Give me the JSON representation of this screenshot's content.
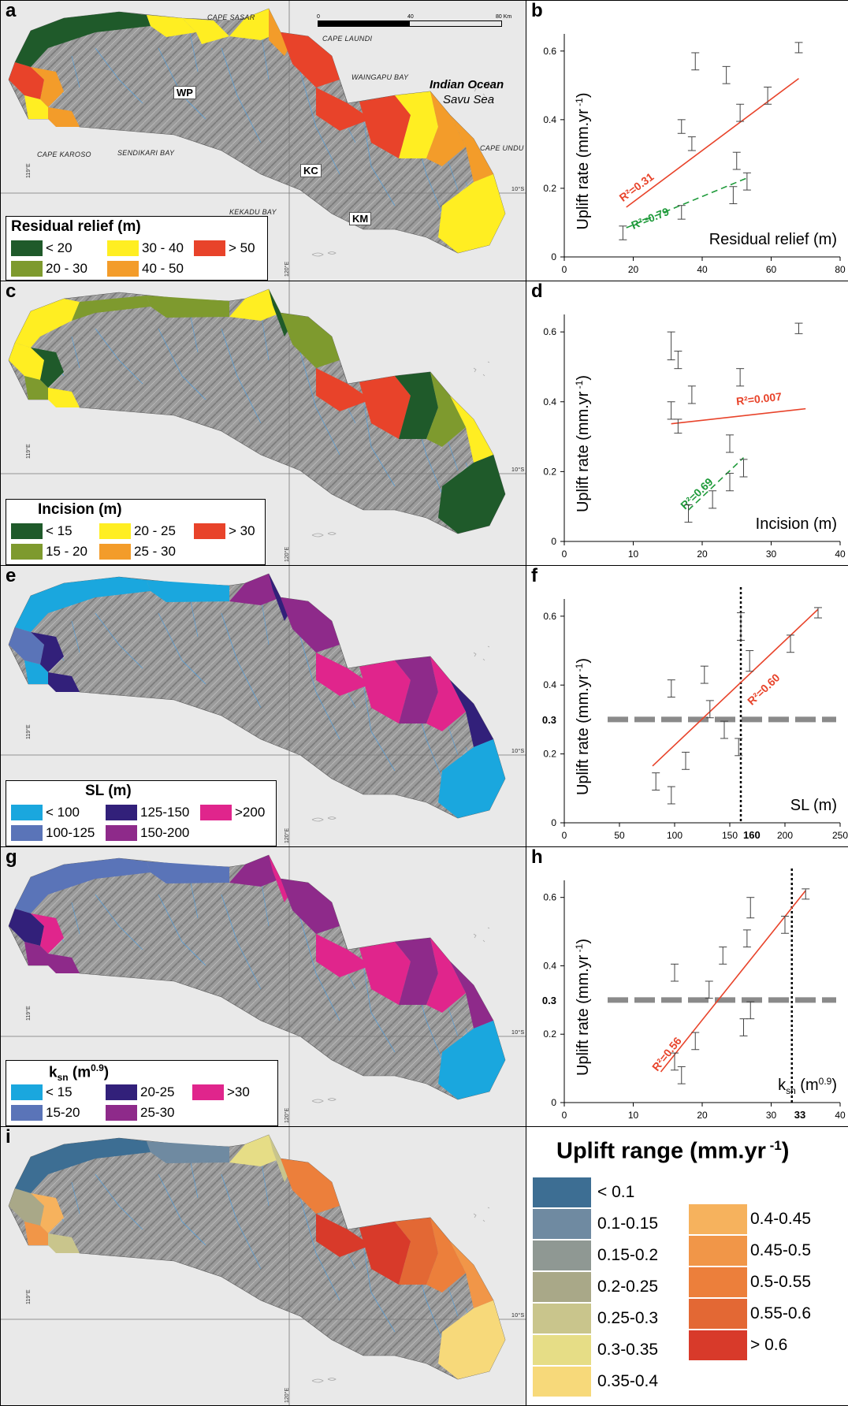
{
  "panels": {
    "a": {
      "letter": "a",
      "place_names": {
        "cape_sasar": "Cape Sasar",
        "cape_laundi": "Cape Laundi",
        "waingapu_bay": "Waingapu Bay",
        "cape_karoso": "Cape Karoso",
        "sendikari_bay": "Sendikari Bay",
        "kekadu_bay": "Kekadu Bay",
        "cape_undu": "Cape Undu",
        "ocean1": "Indian Ocean",
        "ocean2": "Savu Sea",
        "wp": "WP",
        "kc": "KC",
        "km": "KM"
      },
      "scale": {
        "s0": "0",
        "s1": "40",
        "s2": "80 Km"
      },
      "coords": {
        "lon1": "119°E",
        "lon2": "120°E",
        "lat": "10°S"
      },
      "legend": {
        "title": "Residual relief (m)",
        "items": [
          {
            "label": "< 20",
            "color": "#1f5a2a"
          },
          {
            "label": "30 - 40",
            "color": "#ffee22"
          },
          {
            "label": "> 50",
            "color": "#e8432a"
          },
          {
            "label": "20 - 30",
            "color": "#7e9a2e"
          },
          {
            "label": "40 - 50",
            "color": "#f39c2a"
          }
        ]
      }
    },
    "c": {
      "letter": "c",
      "coords": {
        "lon1": "119°E",
        "lon2": "120°E",
        "lat": "10°S"
      },
      "legend": {
        "title": "Incision (m)",
        "items": [
          {
            "label": "< 15",
            "color": "#1f5a2a"
          },
          {
            "label": "20 - 25",
            "color": "#ffee22"
          },
          {
            "label": "> 30",
            "color": "#e8432a"
          },
          {
            "label": "15 - 20",
            "color": "#7e9a2e"
          },
          {
            "label": "25 - 30",
            "color": "#f39c2a"
          }
        ]
      }
    },
    "e": {
      "letter": "e",
      "coords": {
        "lon1": "119°E",
        "lon2": "120°E",
        "lat": "10°S"
      },
      "legend": {
        "title": "SL (m)",
        "items": [
          {
            "label": "< 100",
            "color": "#1aa7de"
          },
          {
            "label": "125-150",
            "color": "#32207a"
          },
          {
            "label": ">200",
            "color": "#e0258c"
          },
          {
            "label": "100-125",
            "color": "#5a74b8"
          },
          {
            "label": "150-200",
            "color": "#8e2a8a"
          }
        ]
      }
    },
    "g": {
      "letter": "g",
      "coords": {
        "lon1": "119°E",
        "lon2": "120°E",
        "lat": "10°S"
      },
      "legend": {
        "title_main": "k",
        "title_sub": "sn",
        "title_unit": " (m",
        "title_sup": "0.9",
        "title_close": ")",
        "items": [
          {
            "label": "< 15",
            "color": "#1aa7de"
          },
          {
            "label": "20-25",
            "color": "#32207a"
          },
          {
            "label": ">30",
            "color": "#e0258c"
          },
          {
            "label": "15-20",
            "color": "#5a74b8"
          },
          {
            "label": "25-30",
            "color": "#8e2a8a"
          }
        ]
      }
    },
    "i": {
      "letter": "i",
      "coords": {
        "lon1": "119°E",
        "lon2": "120°E",
        "lat": "10°S"
      },
      "legend": {
        "title_main": "Uplift range (mm.yr",
        "title_sup": " -1",
        "title_close": ")",
        "left": [
          {
            "label": "< 0.1",
            "color": "#3d6e93"
          },
          {
            "label": "0.1-0.15",
            "color": "#6f8aa1"
          },
          {
            "label": "0.15-0.2",
            "color": "#8f9893"
          },
          {
            "label": "0.2-0.25",
            "color": "#a9a888"
          },
          {
            "label": "0.25-0.3",
            "color": "#c9c58c"
          },
          {
            "label": "0.3-0.35",
            "color": "#e6dd86"
          },
          {
            "label": "0.35-0.4",
            "color": "#f7d97a"
          }
        ],
        "right": [
          {
            "label": "0.4-0.45",
            "color": "#f6b25d"
          },
          {
            "label": "0.45-0.5",
            "color": "#f19648"
          },
          {
            "label": "0.5-0.55",
            "color": "#ec7f3b"
          },
          {
            "label": "0.55-0.6",
            "color": "#e36834"
          },
          {
            "label": "> 0.6",
            "color": "#d83a2a"
          }
        ]
      }
    }
  },
  "chart_data": [
    {
      "panel": "b",
      "type": "scatter",
      "ylabel_main": "Uplift rate (mm.yr",
      "ylabel_sup": " -1",
      "ylabel_close": ")",
      "xlabel": "Residual relief (m)",
      "xlim": [
        0,
        80
      ],
      "ylim": [
        0,
        0.65
      ],
      "xticks": [
        0,
        20,
        40,
        60,
        80
      ],
      "yticks": [
        0,
        0.2,
        0.4,
        0.6
      ],
      "xtick_labels": [
        "0",
        "20",
        "40",
        "60",
        "80"
      ],
      "ytick_labels": [
        "0",
        "0.2",
        "0.4",
        "0.6"
      ],
      "points": [
        {
          "x": 17,
          "y": 0.07,
          "err": 0.02
        },
        {
          "x": 34,
          "y": 0.13,
          "err": 0.02
        },
        {
          "x": 34,
          "y": 0.38,
          "err": 0.02
        },
        {
          "x": 37,
          "y": 0.33,
          "err": 0.02
        },
        {
          "x": 38,
          "y": 0.57,
          "err": 0.025
        },
        {
          "x": 47,
          "y": 0.53,
          "err": 0.025
        },
        {
          "x": 49,
          "y": 0.18,
          "err": 0.025
        },
        {
          "x": 50,
          "y": 0.28,
          "err": 0.025
        },
        {
          "x": 51,
          "y": 0.42,
          "err": 0.025
        },
        {
          "x": 53,
          "y": 0.22,
          "err": 0.025
        },
        {
          "x": 59,
          "y": 0.47,
          "err": 0.025
        },
        {
          "x": 68,
          "y": 0.61,
          "err": 0.015
        }
      ],
      "fits": [
        {
          "color": "#e8432a",
          "dash": false,
          "x1": 18,
          "y1": 0.145,
          "x2": 68,
          "y2": 0.52,
          "label": "R²=0.31",
          "label_x": 17,
          "label_y": 0.16
        },
        {
          "color": "#1e9a3a",
          "dash": true,
          "x1": 18,
          "y1": 0.085,
          "x2": 53,
          "y2": 0.23,
          "label": "R²=0.79",
          "label_x": 20,
          "label_y": 0.08
        }
      ]
    },
    {
      "panel": "d",
      "type": "scatter",
      "ylabel_main": "Uplift rate (mm.yr",
      "ylabel_sup": " -1",
      "ylabel_close": ")",
      "xlabel": "Incision (m)",
      "xlim": [
        0,
        40
      ],
      "ylim": [
        0,
        0.65
      ],
      "xticks": [
        0,
        10,
        20,
        30,
        40
      ],
      "yticks": [
        0,
        0.2,
        0.4,
        0.6
      ],
      "xtick_labels": [
        "0",
        "10",
        "20",
        "30",
        "40"
      ],
      "ytick_labels": [
        "0",
        "0.2",
        "0.4",
        "0.6"
      ],
      "points": [
        {
          "x": 15.5,
          "y": 0.375,
          "err": 0.025
        },
        {
          "x": 15.5,
          "y": 0.56,
          "err": 0.04
        },
        {
          "x": 16.5,
          "y": 0.52,
          "err": 0.025
        },
        {
          "x": 16.5,
          "y": 0.33,
          "err": 0.02
        },
        {
          "x": 18,
          "y": 0.08,
          "err": 0.025
        },
        {
          "x": 18.5,
          "y": 0.42,
          "err": 0.025
        },
        {
          "x": 21.5,
          "y": 0.12,
          "err": 0.025
        },
        {
          "x": 24,
          "y": 0.17,
          "err": 0.025
        },
        {
          "x": 24,
          "y": 0.28,
          "err": 0.025
        },
        {
          "x": 25.5,
          "y": 0.47,
          "err": 0.025
        },
        {
          "x": 26,
          "y": 0.21,
          "err": 0.025
        },
        {
          "x": 34,
          "y": 0.61,
          "err": 0.015
        }
      ],
      "fits": [
        {
          "color": "#e8432a",
          "dash": false,
          "x1": 15.5,
          "y1": 0.337,
          "x2": 35,
          "y2": 0.38,
          "label": "R²=0.007",
          "label_x": 25,
          "label_y": 0.39
        },
        {
          "color": "#1e9a3a",
          "dash": true,
          "x1": 18,
          "y1": 0.09,
          "x2": 26,
          "y2": 0.24,
          "label": "R²=0.69",
          "label_x": 17.5,
          "label_y": 0.09
        }
      ]
    },
    {
      "panel": "f",
      "type": "scatter",
      "ylabel_main": "Uplift rate (mm.yr",
      "ylabel_sup": " -1",
      "ylabel_close": ")",
      "xlabel": "SL (m)",
      "xlim": [
        0,
        250
      ],
      "ylim": [
        0,
        0.65
      ],
      "xticks": [
        0,
        50,
        100,
        150,
        200,
        250
      ],
      "yticks": [
        0,
        0.2,
        0.4,
        0.6
      ],
      "xtick_labels": [
        "0",
        "50",
        "100",
        "150",
        "",
        "250"
      ],
      "ytick_labels": [
        "0",
        "0.2",
        "0.4",
        "0.6"
      ],
      "threshold_y": 0.3,
      "threshold_y_label": "0.3",
      "threshold_x": 160,
      "threshold_x_label": "160",
      "second_label_200": "200",
      "points": [
        {
          "x": 83,
          "y": 0.12,
          "err": 0.025
        },
        {
          "x": 97,
          "y": 0.08,
          "err": 0.025
        },
        {
          "x": 97,
          "y": 0.39,
          "err": 0.025
        },
        {
          "x": 110,
          "y": 0.18,
          "err": 0.025
        },
        {
          "x": 127,
          "y": 0.43,
          "err": 0.025
        },
        {
          "x": 132,
          "y": 0.33,
          "err": 0.025
        },
        {
          "x": 145,
          "y": 0.27,
          "err": 0.025
        },
        {
          "x": 158,
          "y": 0.22,
          "err": 0.025
        },
        {
          "x": 160,
          "y": 0.57,
          "err": 0.04
        },
        {
          "x": 168,
          "y": 0.47,
          "err": 0.03
        },
        {
          "x": 205,
          "y": 0.52,
          "err": 0.025
        },
        {
          "x": 230,
          "y": 0.61,
          "err": 0.015
        }
      ],
      "fits": [
        {
          "color": "#e8432a",
          "dash": false,
          "x1": 80,
          "y1": 0.165,
          "x2": 230,
          "y2": 0.62,
          "label": "R²=0.60",
          "label_x": 170,
          "label_y": 0.34
        }
      ]
    },
    {
      "panel": "h",
      "type": "scatter",
      "ylabel_main": "Uplift rate (mm.yr",
      "ylabel_sup": " -1",
      "ylabel_close": ")",
      "xlabel_main": "k",
      "xlabel_sub": "sn",
      "xlabel_unit": " (m",
      "xlabel_sup": "0.9",
      "xlabel_close": ")",
      "xlim": [
        0,
        40
      ],
      "ylim": [
        0,
        0.65
      ],
      "xticks": [
        0,
        10,
        20,
        30,
        40
      ],
      "yticks": [
        0,
        0.2,
        0.4,
        0.6
      ],
      "xtick_labels": [
        "0",
        "10",
        "20",
        "30",
        "40"
      ],
      "ytick_labels": [
        "0",
        "0.2",
        "0.4",
        "0.6"
      ],
      "threshold_y": 0.3,
      "threshold_y_label": "0.3",
      "threshold_x": 33,
      "threshold_x_label": "33",
      "points": [
        {
          "x": 16,
          "y": 0.12,
          "err": 0.025
        },
        {
          "x": 16,
          "y": 0.38,
          "err": 0.025
        },
        {
          "x": 17,
          "y": 0.08,
          "err": 0.025
        },
        {
          "x": 19,
          "y": 0.18,
          "err": 0.025
        },
        {
          "x": 21,
          "y": 0.33,
          "err": 0.025
        },
        {
          "x": 23,
          "y": 0.43,
          "err": 0.025
        },
        {
          "x": 26,
          "y": 0.22,
          "err": 0.025
        },
        {
          "x": 26.5,
          "y": 0.48,
          "err": 0.025
        },
        {
          "x": 27,
          "y": 0.27,
          "err": 0.025
        },
        {
          "x": 27,
          "y": 0.57,
          "err": 0.03
        },
        {
          "x": 32,
          "y": 0.52,
          "err": 0.025
        },
        {
          "x": 35,
          "y": 0.61,
          "err": 0.015
        }
      ],
      "fits": [
        {
          "color": "#e8432a",
          "dash": false,
          "x1": 14,
          "y1": 0.09,
          "x2": 35,
          "y2": 0.62,
          "label": "R²=0.56",
          "label_x": 13.5,
          "label_y": 0.09
        }
      ]
    }
  ]
}
